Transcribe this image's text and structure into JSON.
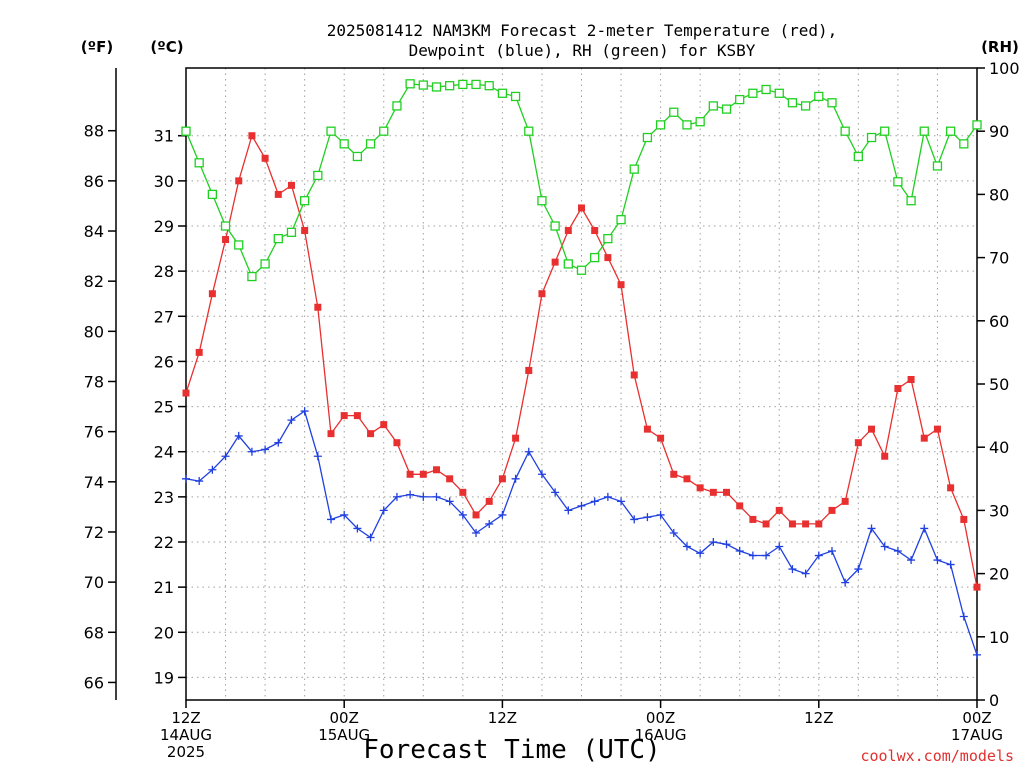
{
  "chart_data": {
    "type": "line",
    "title_line1": "2025081412 NAM3KM Forecast 2-meter Temperature (red),",
    "title_line2": "Dewpoint (blue), RH (green) for KSBY",
    "xlabel": "Forecast Time (UTC)",
    "credit": "coolwx.com/models",
    "unit_f": "(ºF)",
    "unit_c": "(ºC)",
    "unit_rh": "(RH)",
    "grid": true,
    "x_unit": "forecast hour",
    "x_range": [
      0,
      60
    ],
    "c_range": [
      18.5,
      32.5
    ],
    "rh_range": [
      0,
      100
    ],
    "yticks_c": [
      "19",
      "20",
      "21",
      "22",
      "23",
      "24",
      "25",
      "26",
      "27",
      "28",
      "29",
      "30",
      "31"
    ],
    "yticks_f": [
      "66",
      "68",
      "70",
      "72",
      "74",
      "76",
      "78",
      "80",
      "82",
      "84",
      "86",
      "88"
    ],
    "yticks_rh": [
      "0",
      "10",
      "20",
      "30",
      "40",
      "50",
      "60",
      "70",
      "80",
      "90",
      "100"
    ],
    "xticks": [
      {
        "hour": 0,
        "lines": [
          "12Z",
          "14AUG",
          "2025"
        ]
      },
      {
        "hour": 12,
        "lines": [
          "00Z",
          "15AUG"
        ]
      },
      {
        "hour": 24,
        "lines": [
          "12Z"
        ]
      },
      {
        "hour": 36,
        "lines": [
          "00Z",
          "16AUG"
        ]
      },
      {
        "hour": 48,
        "lines": [
          "12Z"
        ]
      },
      {
        "hour": 60,
        "lines": [
          "00Z",
          "17AUG"
        ]
      }
    ],
    "x": [
      0,
      1,
      2,
      3,
      4,
      5,
      6,
      7,
      8,
      9,
      10,
      11,
      12,
      13,
      14,
      15,
      16,
      17,
      18,
      19,
      20,
      21,
      22,
      23,
      24,
      25,
      26,
      27,
      28,
      29,
      30,
      31,
      32,
      33,
      34,
      35,
      36,
      37,
      38,
      39,
      40,
      41,
      42,
      43,
      44,
      45,
      46,
      47,
      48,
      49,
      50,
      51,
      52,
      53,
      54,
      55,
      56,
      57,
      58,
      59,
      60
    ],
    "series": [
      {
        "name": "Temperature",
        "unit": "°C",
        "color": "#e83030",
        "marker": "filled-square",
        "values": [
          25.3,
          26.2,
          27.5,
          28.7,
          30.0,
          31.0,
          30.5,
          29.7,
          29.9,
          28.9,
          27.2,
          24.4,
          24.8,
          24.8,
          24.4,
          24.6,
          24.2,
          23.5,
          23.5,
          23.6,
          23.4,
          23.1,
          22.6,
          22.9,
          23.4,
          24.3,
          25.8,
          27.5,
          28.2,
          28.9,
          29.4,
          28.9,
          28.3,
          27.7,
          25.7,
          24.5,
          24.3,
          23.5,
          23.4,
          23.2,
          23.1,
          23.1,
          22.8,
          22.5,
          22.4,
          22.7,
          22.4,
          22.4,
          22.4,
          22.7,
          22.9,
          24.2,
          24.5,
          23.9,
          25.4,
          25.6,
          24.3,
          24.5,
          23.2,
          22.5,
          21.0
        ]
      },
      {
        "name": "Dewpoint",
        "unit": "°C",
        "color": "#2040e0",
        "marker": "plus",
        "values": [
          23.4,
          23.35,
          23.6,
          23.9,
          24.35,
          24.0,
          24.05,
          24.2,
          24.7,
          24.9,
          23.9,
          22.5,
          22.6,
          22.3,
          22.1,
          22.7,
          23.0,
          23.05,
          23.0,
          23.0,
          22.9,
          22.6,
          22.2,
          22.4,
          22.6,
          23.4,
          24.0,
          23.5,
          23.1,
          22.7,
          22.8,
          22.9,
          23.0,
          22.9,
          22.5,
          22.55,
          22.6,
          22.2,
          21.9,
          21.75,
          22.0,
          21.95,
          21.8,
          21.7,
          21.7,
          21.9,
          21.4,
          21.3,
          21.7,
          21.8,
          21.1,
          21.4,
          22.3,
          21.9,
          21.8,
          21.6,
          22.3,
          21.6,
          21.5,
          20.35,
          19.5
        ]
      },
      {
        "name": "RH",
        "unit": "%",
        "color": "#20d020",
        "marker": "open-square",
        "values": [
          90,
          85,
          80,
          75,
          72,
          67,
          69,
          73,
          74,
          79,
          83,
          90,
          88,
          86,
          88,
          90,
          94,
          97.5,
          97.3,
          97,
          97.2,
          97.4,
          97.4,
          97.2,
          96,
          95.5,
          90,
          79,
          75,
          69,
          68,
          70,
          73,
          76,
          84,
          89,
          91,
          93,
          91,
          91.5,
          94,
          93.5,
          95,
          96,
          96.6,
          96,
          94.5,
          94,
          95.5,
          94.5,
          90,
          86,
          89,
          90,
          82,
          79,
          90,
          84.5,
          90,
          88,
          91
        ]
      }
    ]
  }
}
